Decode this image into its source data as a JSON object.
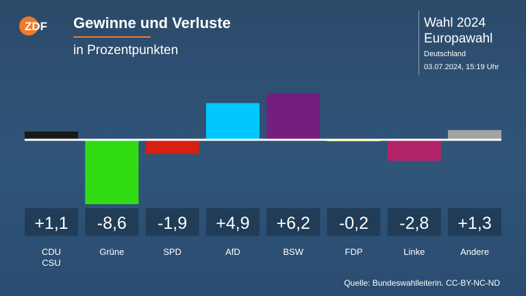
{
  "header": {
    "logo_text": "ZDF",
    "title": "Gewinne und Verluste",
    "subtitle": "in Prozentpunkten",
    "election_line1": "Wahl 2024",
    "election_line2": "Europawahl",
    "region": "Deutschland",
    "timestamp": "03.07.2024, 15:19 Uhr"
  },
  "colors": {
    "background": "#2d4f73",
    "logo_orange": "#f07a2b",
    "label_box": "#203c57"
  },
  "chart_data": {
    "type": "bar",
    "title": "Gewinne und Verluste",
    "subtitle": "in Prozentpunkten",
    "categories": [
      "CDU\nCSU",
      "Grüne",
      "SPD",
      "AfD",
      "BSW",
      "FDP",
      "Linke",
      "Andere"
    ],
    "values": [
      1.1,
      -8.6,
      -1.9,
      4.9,
      6.2,
      -0.2,
      -2.8,
      1.3
    ],
    "value_labels": [
      "+1,1",
      "-8,6",
      "-1,9",
      "+4,9",
      "+6,2",
      "-0,2",
      "-2,8",
      "+1,3"
    ],
    "bar_colors": [
      "#1a1a1a",
      "#32dc14",
      "#d71f12",
      "#00c8ff",
      "#751e7d",
      "#f0d200",
      "#b3236a",
      "#a3a3a3"
    ],
    "ylim": [
      -8.6,
      6.2
    ],
    "grid": false,
    "legend": "none"
  },
  "footer": {
    "source": "Quelle: Bundeswahlleiterin. CC-BY-NC-ND"
  }
}
